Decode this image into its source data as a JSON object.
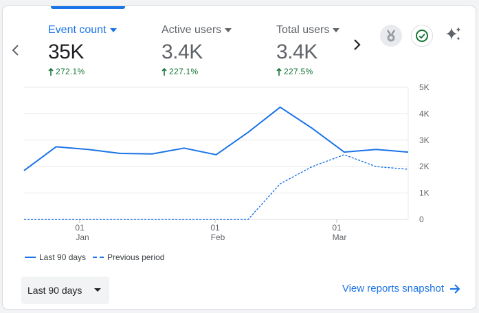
{
  "metrics": [
    {
      "label": "Event count",
      "value": "35K",
      "change": "272.1%",
      "active": true
    },
    {
      "label": "Active users",
      "value": "3.4K",
      "change": "227.1%",
      "active": false
    },
    {
      "label": "Total users",
      "value": "3.4K",
      "change": "227.5%",
      "active": false
    }
  ],
  "legend": {
    "current": "Last 90 days",
    "previous": "Previous period"
  },
  "range_selector": {
    "value": "Last 90 days"
  },
  "snapshot_link": "View reports snapshot",
  "icons": [
    "chevron-left-icon",
    "chevron-right-icon",
    "caret-down-icon",
    "arrow-up-icon",
    "badge-icon",
    "check-circle-icon",
    "sparkle-icon",
    "arrow-right-icon"
  ],
  "colors": {
    "accent": "#1a73e8",
    "positive": "#137333",
    "muted": "#5f6368"
  },
  "chart_data": {
    "type": "line",
    "x_ticks": [
      {
        "day": "01",
        "month": "Jan"
      },
      {
        "day": "01",
        "month": "Feb"
      },
      {
        "day": "01",
        "month": "Mar"
      }
    ],
    "y_ticks": [
      "5K",
      "4K",
      "3K",
      "2K",
      "1K",
      "0"
    ],
    "ylim": [
      0,
      5000
    ],
    "grid": true,
    "legend_position": "bottom-left",
    "series": [
      {
        "name": "Last 90 days",
        "style": "solid",
        "values": [
          1850,
          2750,
          2650,
          2500,
          2480,
          2700,
          2450,
          3300,
          4250,
          3450,
          2550,
          2650,
          2550
        ]
      },
      {
        "name": "Previous period",
        "style": "dashed",
        "values": [
          0,
          0,
          0,
          0,
          0,
          0,
          0,
          0,
          1350,
          2000,
          2450,
          2000,
          1900
        ]
      }
    ]
  }
}
